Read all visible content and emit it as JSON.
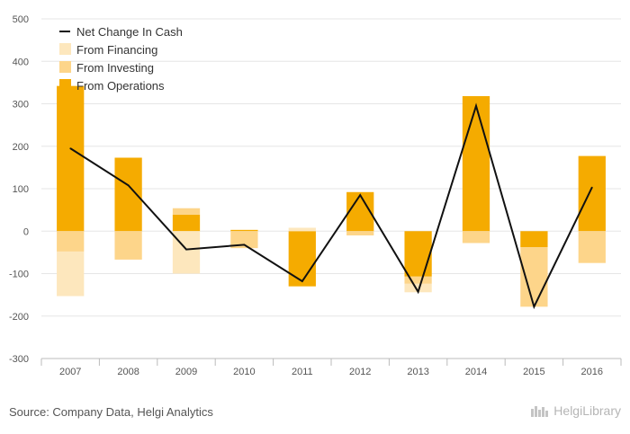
{
  "colors": {
    "operations": "#f5ab00",
    "investing": "#fdd58a",
    "financing": "#fde7bd",
    "net_line": "#111111",
    "grid": "#e6e6e6",
    "axis": "#bbbbbb"
  },
  "chart_data": {
    "type": "bar",
    "stacked": true,
    "title": "",
    "xlabel": "",
    "ylabel": "",
    "ylim": [
      -300,
      500
    ],
    "yticks": [
      500,
      400,
      300,
      200,
      100,
      0,
      -100,
      -200,
      -300
    ],
    "grid": true,
    "legend_position": "top-left",
    "categories": [
      "2007",
      "2008",
      "2009",
      "2010",
      "2011",
      "2012",
      "2013",
      "2014",
      "2015",
      "2016"
    ],
    "series": [
      {
        "name": "From Operations",
        "kind": "bar",
        "color_key": "operations",
        "values": [
          342,
          173,
          39,
          3,
          -130,
          92,
          -107,
          318,
          -38,
          177
        ]
      },
      {
        "name": "From Investing",
        "kind": "bar",
        "color_key": "investing",
        "values": [
          -48,
          -67,
          15,
          -40,
          0,
          -10,
          -17,
          -28,
          -140,
          -75
        ]
      },
      {
        "name": "From Financing",
        "kind": "bar",
        "color_key": "financing",
        "values": [
          -105,
          0,
          -100,
          0,
          8,
          0,
          -20,
          0,
          0,
          0
        ]
      },
      {
        "name": "Net Change In Cash",
        "kind": "line",
        "color_key": "net_line",
        "values": [
          195,
          108,
          -43,
          -32,
          -118,
          85,
          -143,
          295,
          -178,
          103
        ]
      }
    ]
  },
  "footer": {
    "source": "Source: Company Data, Helgi Analytics",
    "brand": "HelgiLibrary"
  }
}
